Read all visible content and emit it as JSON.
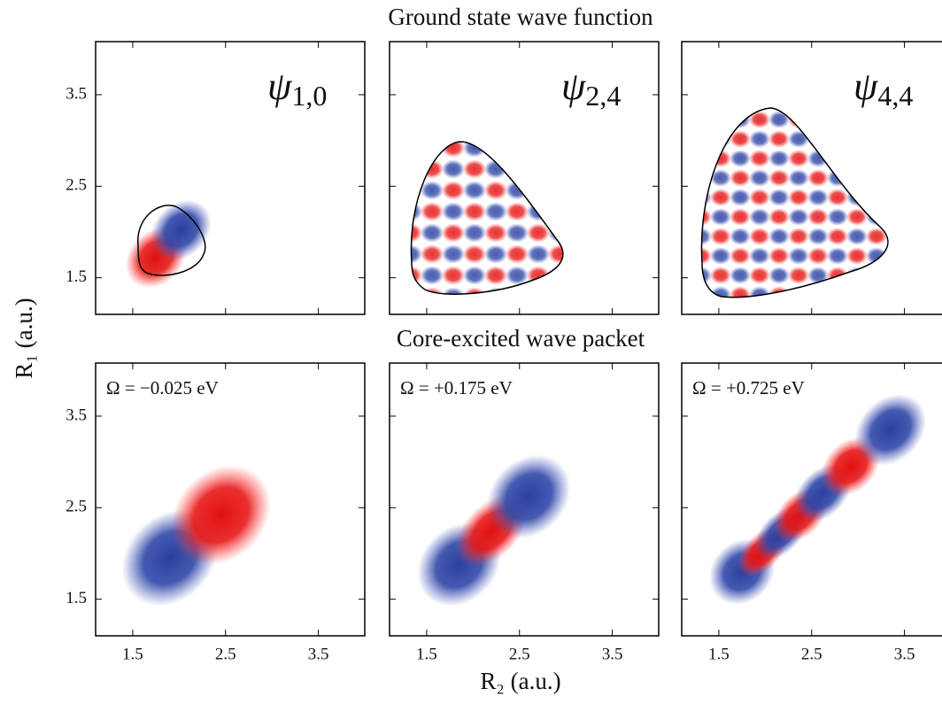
{
  "row_titles": [
    "Ground state wave function",
    "Core-excited wave packet"
  ],
  "x_label": "R₂ (a.u.)",
  "y_label": "R₁ (a.u.)",
  "chart_data": [
    {
      "type": "heatmap",
      "label": {
        "symbol": "ψ",
        "subscript": "1,0"
      },
      "xlim": [
        1.1,
        4.0
      ],
      "ylim": [
        1.1,
        4.08
      ],
      "xticks": [
        1.5,
        2.5,
        3.5
      ],
      "yticks": [
        1.5,
        2.5,
        3.5
      ]
    },
    {
      "type": "heatmap",
      "label": {
        "symbol": "ψ",
        "subscript": "2,4"
      },
      "xlim": [
        1.1,
        4.0
      ],
      "ylim": [
        1.1,
        4.08
      ],
      "xticks": [
        1.5,
        2.5,
        3.5
      ],
      "yticks": [
        1.5,
        2.5,
        3.5
      ]
    },
    {
      "type": "heatmap",
      "label": {
        "symbol": "ψ",
        "subscript": "4,4"
      },
      "xlim": [
        1.1,
        4.0
      ],
      "ylim": [
        1.1,
        4.08
      ],
      "xticks": [
        1.5,
        2.5,
        3.5
      ],
      "yticks": [
        1.5,
        2.5,
        3.5
      ]
    },
    {
      "type": "heatmap",
      "label": "Ω = −0.025 eV",
      "xlim": [
        1.1,
        4.0
      ],
      "ylim": [
        1.1,
        4.08
      ],
      "xticks": [
        1.5,
        2.5,
        3.5
      ],
      "yticks": [
        1.5,
        2.5,
        3.5
      ]
    },
    {
      "type": "heatmap",
      "label": "Ω = +0.175 eV",
      "xlim": [
        1.1,
        4.0
      ],
      "ylim": [
        1.1,
        4.08
      ],
      "xticks": [
        1.5,
        2.5,
        3.5
      ],
      "yticks": [
        1.5,
        2.5,
        3.5
      ]
    },
    {
      "type": "heatmap",
      "label": "Ω = +0.725 eV",
      "xlim": [
        1.1,
        4.0
      ],
      "ylim": [
        1.1,
        4.08
      ],
      "xticks": [
        1.5,
        2.5,
        3.5
      ],
      "yticks": [
        1.5,
        2.5,
        3.5
      ]
    }
  ]
}
